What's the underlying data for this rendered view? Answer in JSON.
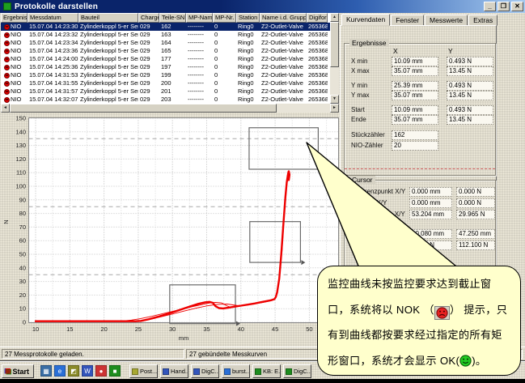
{
  "window": {
    "title": "Protokolle darstellen",
    "controls": [
      {
        "icon": "minimize-icon",
        "glyph": "_"
      },
      {
        "icon": "restore-icon",
        "glyph": "❐"
      },
      {
        "icon": "close-icon",
        "glyph": "✕"
      }
    ]
  },
  "icons": {
    "up": "▲",
    "down": "▼",
    "left": "◄",
    "right": "►",
    "windows_flag": "⊞"
  },
  "colors": {
    "titlebar_left": "#0a246a",
    "titlebar_right": "#a6caf0",
    "selection": "#0a246a",
    "curve_red": "#ee0000",
    "window_gray": "#d6d2c4",
    "callout_yellow": "#ffffcc",
    "nok_red": "#e60000",
    "ok_green": "#22bb22"
  },
  "table": {
    "columns": [
      "Ergebnis",
      "Messdatum",
      "Bauteil",
      "Charge",
      "Teile-SN",
      "MP-Name",
      "MP-Nr.",
      "Station",
      "Name i.d. Gruppe",
      "Digiforce"
    ],
    "rows": [
      {
        "result": "NIO",
        "date": "15.07.04 14:23:30",
        "part": "Zylinderkoppl 5-er Serie",
        "charge": "029",
        "sn": "162",
        "mp_name": "--------",
        "mp_nr": "0",
        "station": "Ring0",
        "group": "Z2-Outlet-Valve",
        "digiforce": "265368",
        "selected": true
      },
      {
        "result": "NIO",
        "date": "15.07.04 14:23:32",
        "part": "Zylinderkoppl 5-er Serie",
        "charge": "029",
        "sn": "163",
        "mp_name": "--------",
        "mp_nr": "0",
        "station": "Ring0",
        "group": "Z2-Outlet-Valve",
        "digiforce": "265368",
        "selected": false
      },
      {
        "result": "NIO",
        "date": "15.07.04 14:23:34",
        "part": "Zylinderkoppl 5-er Serie",
        "charge": "029",
        "sn": "164",
        "mp_name": "--------",
        "mp_nr": "0",
        "station": "Ring0",
        "group": "Z2-Outlet-Valve",
        "digiforce": "265368",
        "selected": false
      },
      {
        "result": "NIO",
        "date": "15.07.04 14:23:36",
        "part": "Zylinderkoppl 5-er Serie",
        "charge": "029",
        "sn": "165",
        "mp_name": "--------",
        "mp_nr": "0",
        "station": "Ring0",
        "group": "Z2-Outlet-Valve",
        "digiforce": "265368",
        "selected": false
      },
      {
        "result": "NIO",
        "date": "15.07.04 14:24:00",
        "part": "Zylinderkoppl 5-er Serie",
        "charge": "029",
        "sn": "177",
        "mp_name": "--------",
        "mp_nr": "0",
        "station": "Ring0",
        "group": "Z2-Outlet-Valve",
        "digiforce": "265368",
        "selected": false
      },
      {
        "result": "NIO",
        "date": "15.07.04 14:25:36",
        "part": "Zylinderkoppl 5-er Serie",
        "charge": "029",
        "sn": "197",
        "mp_name": "--------",
        "mp_nr": "0",
        "station": "Ring0",
        "group": "Z2-Outlet-Valve",
        "digiforce": "265368",
        "selected": false
      },
      {
        "result": "NIO",
        "date": "15.07.04 14:31:53",
        "part": "Zylinderkoppl 5-er Serie",
        "charge": "029",
        "sn": "199",
        "mp_name": "--------",
        "mp_nr": "0",
        "station": "Ring0",
        "group": "Z2-Outlet-Valve",
        "digiforce": "265368",
        "selected": false
      },
      {
        "result": "NIO",
        "date": "15.07.04 14:31:55",
        "part": "Zylinderkoppl 5-er Serie",
        "charge": "029",
        "sn": "200",
        "mp_name": "--------",
        "mp_nr": "0",
        "station": "Ring0",
        "group": "Z2-Outlet-Valve",
        "digiforce": "265368",
        "selected": false
      },
      {
        "result": "NIO",
        "date": "15.07.04 14:31:57",
        "part": "Zylinderkoppl 5-er Serie",
        "charge": "029",
        "sn": "201",
        "mp_name": "--------",
        "mp_nr": "0",
        "station": "Ring0",
        "group": "Z2-Outlet-Valve",
        "digiforce": "265368",
        "selected": false
      },
      {
        "result": "NIO",
        "date": "15.07.04 14:32:07",
        "part": "Zylinderkoppl 5-er Serie",
        "charge": "029",
        "sn": "203",
        "mp_name": "--------",
        "mp_nr": "0",
        "station": "Ring0",
        "group": "Z2-Outlet-Valve",
        "digiforce": "265368",
        "selected": false
      }
    ]
  },
  "tabs": {
    "items": [
      {
        "label": "Kurvendaten"
      },
      {
        "label": "Fenster"
      },
      {
        "label": "Messwerte"
      },
      {
        "label": "Extras"
      }
    ],
    "active": 0
  },
  "ergebnisse": {
    "title": "Ergebnisse",
    "col_x": "X",
    "col_y": "Y",
    "rows": [
      {
        "label": "X min",
        "x": "10.09 mm",
        "y": "0.493 N"
      },
      {
        "label": "X max",
        "x": "35.07 mm",
        "y": "13.45 N"
      },
      {
        "label": "Y min",
        "x": "25.39 mm",
        "y": "0.493 N"
      },
      {
        "label": "Y max",
        "x": "35.07 mm",
        "y": "13.45 N"
      },
      {
        "label": "Start",
        "x": "10.09 mm",
        "y": "0.493 N"
      },
      {
        "label": "Ende",
        "x": "35.07 mm",
        "y": "13.45 N"
      }
    ],
    "stueck": {
      "label": "Stückzähler",
      "value": "162"
    },
    "nio": {
      "label": "NIO-Zähler",
      "value": "20"
    }
  },
  "cursor": {
    "title": "Cursor",
    "rows": [
      {
        "label": "Referenzpunkt X/Y",
        "x": "0.000 mm",
        "y": "0.000 N"
      },
      {
        "label": "Abstand X/Y",
        "x": "0.000 mm",
        "y": "0.000 N"
      },
      {
        "label": "Cursorposition X/Y",
        "x": "53.204 mm",
        "y": "29.965 N"
      }
    ],
    "minmax": [
      {
        "label": "X-min/max",
        "a": "10.080 mm",
        "b": "47.250 mm"
      },
      {
        "label": "Y-min/max",
        "a": "0.312 N",
        "b": "112.100 N"
      }
    ]
  },
  "chart_data": {
    "type": "line",
    "title": "",
    "xlabel": "mm",
    "ylabel": "N",
    "xlim": [
      9,
      54
    ],
    "ylim": [
      -4,
      150
    ],
    "x_ticks": [
      10,
      15,
      20,
      25,
      30,
      35,
      40,
      45,
      50
    ],
    "y_ticks": [
      0,
      10,
      20,
      30,
      40,
      50,
      60,
      70,
      80,
      90,
      100,
      110,
      120,
      130,
      140,
      150
    ],
    "grid": true,
    "bundled_curves_count": 27,
    "dash_guide_lines_N": [
      35,
      85,
      135
    ],
    "monitor_windows": [
      {
        "x1": 41.2,
        "y1": 112.5,
        "x2": 51.3,
        "y2": 143
      },
      {
        "x1": 41.3,
        "y1": 44,
        "x2": 48.7,
        "y2": 74
      },
      {
        "x1": 29.6,
        "y1": -1,
        "x2": 39.2,
        "y2": 27.5
      }
    ],
    "series": [
      {
        "name": "bundle-main",
        "width": 2.4,
        "points": [
          [
            10,
            0.8
          ],
          [
            24.6,
            0.8
          ],
          [
            25.4,
            1.0
          ],
          [
            26.5,
            2.2
          ],
          [
            28,
            4.2
          ],
          [
            29.5,
            6.5
          ],
          [
            31,
            9
          ],
          [
            32.5,
            11.5
          ],
          [
            33.8,
            13.6
          ],
          [
            34.8,
            14.7
          ],
          [
            35.4,
            15
          ],
          [
            35.9,
            14.3
          ],
          [
            36.3,
            11.8
          ],
          [
            36.8,
            10.4
          ],
          [
            37.4,
            10.2
          ],
          [
            38.2,
            10.8
          ],
          [
            39,
            11.4
          ],
          [
            40,
            12.2
          ],
          [
            41,
            13
          ],
          [
            42,
            13.8
          ],
          [
            43,
            14.8
          ],
          [
            43.8,
            15.6
          ],
          [
            44.4,
            16.2
          ],
          [
            44.9,
            17
          ],
          [
            45.1,
            18.5
          ],
          [
            45.3,
            22
          ],
          [
            45.6,
            32
          ],
          [
            45.9,
            50
          ],
          [
            46.2,
            72
          ],
          [
            46.5,
            92
          ],
          [
            46.7,
            103
          ],
          [
            46.85,
            108
          ],
          [
            46.95,
            110.5
          ],
          [
            47.0,
            111
          ],
          [
            47.1,
            108.5
          ],
          [
            47.0,
            104.5
          ]
        ]
      },
      {
        "name": "bundle-strand-2",
        "width": 0.9,
        "points": [
          [
            22.3,
            0.8
          ],
          [
            24,
            1.6
          ],
          [
            25.3,
            2.6
          ],
          [
            27,
            4.4
          ],
          [
            29,
            6.8
          ],
          [
            31,
            9.2
          ],
          [
            33,
            11.6
          ],
          [
            34.5,
            13.2
          ],
          [
            35.5,
            14.2
          ],
          [
            36.3,
            14.6
          ],
          [
            37.2,
            14.2
          ],
          [
            37.9,
            12.2
          ],
          [
            38.4,
            11.2
          ],
          [
            39.3,
            11.8
          ],
          [
            40.5,
            12.6
          ],
          [
            42,
            13.6
          ],
          [
            43.5,
            15
          ],
          [
            44.6,
            16.4
          ],
          [
            45,
            17.6
          ],
          [
            45.3,
            21
          ],
          [
            45.6,
            31
          ],
          [
            46,
            52
          ],
          [
            46.3,
            76
          ],
          [
            46.6,
            95
          ],
          [
            46.8,
            104
          ],
          [
            46.9,
            108
          ]
        ]
      },
      {
        "name": "bundle-strand-3",
        "width": 0.9,
        "points": [
          [
            25.8,
            1.2
          ],
          [
            27.5,
            3
          ],
          [
            29.5,
            5.5
          ],
          [
            31.5,
            8
          ],
          [
            33.5,
            10.5
          ],
          [
            35,
            12
          ],
          [
            36,
            12.8
          ],
          [
            37,
            13.2
          ],
          [
            38,
            13.4
          ],
          [
            38.8,
            12.8
          ],
          [
            39.6,
            12.2
          ],
          [
            40.6,
            12.8
          ],
          [
            42,
            13.6
          ],
          [
            43.2,
            14.6
          ],
          [
            44.2,
            15.6
          ],
          [
            44.9,
            16.6
          ]
        ]
      }
    ]
  },
  "status": {
    "left": "27 Messprotokolle geladen.",
    "right": "27 gebündelte Messkurven"
  },
  "taskbar": {
    "start": {
      "label": "Start",
      "icon": "windows-logo-icon"
    },
    "quicklaunch": [
      {
        "icon": "desktop-app-icon",
        "glyph": "▦",
        "color": "#3a6ea5"
      },
      {
        "icon": "internet-explorer-icon",
        "glyph": "e",
        "color": "#2a6fd6"
      },
      {
        "icon": "olive-app-icon",
        "glyph": "◩",
        "color": "#8a8a2a"
      },
      {
        "icon": "word-icon",
        "glyph": "W",
        "color": "#3355bb"
      },
      {
        "icon": "media-app-icon",
        "glyph": "●",
        "color": "#cc3333"
      },
      {
        "icon": "green-app-icon",
        "glyph": "■",
        "color": "#1e8c1e"
      }
    ],
    "buttons": [
      {
        "label": "Post...",
        "icon": "mail-app-icon",
        "color": "#a8a832"
      },
      {
        "label": "Hand...",
        "icon": "word-doc-icon",
        "color": "#3355bb"
      },
      {
        "label": "DigC...",
        "icon": "word-doc-icon",
        "color": "#3355bb"
      },
      {
        "label": "burst...",
        "icon": "internet-explorer-icon",
        "color": "#2a6fd6"
      },
      {
        "label": "KB: E...",
        "icon": "green-app-icon",
        "color": "#1e8c1e"
      },
      {
        "label": "DigC...",
        "icon": "green-app-icon",
        "color": "#1e8c1e"
      }
    ]
  },
  "callout": {
    "lines": [
      {
        "text": "监控曲线未按监控要求达到截止窗"
      },
      {
        "pre": "口，系统将以 NOK （",
        "post": "） 提示，只",
        "icon": "nok-face-icon"
      },
      {
        "text": "有到曲线都按要求经过指定的所有矩"
      },
      {
        "pre": "形窗口，系统才会显示 OK(",
        "post": ")。",
        "icon": "ok-face-icon"
      }
    ]
  }
}
